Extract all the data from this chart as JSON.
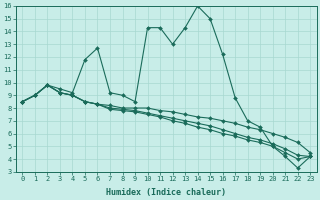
{
  "xlabel": "Humidex (Indice chaleur)",
  "xlim": [
    -0.5,
    23.5
  ],
  "ylim": [
    3,
    16
  ],
  "xticks": [
    0,
    1,
    2,
    3,
    4,
    5,
    6,
    7,
    8,
    9,
    10,
    11,
    12,
    13,
    14,
    15,
    16,
    17,
    18,
    19,
    20,
    21,
    22,
    23
  ],
  "yticks": [
    3,
    4,
    5,
    6,
    7,
    8,
    9,
    10,
    11,
    12,
    13,
    14,
    15,
    16
  ],
  "bg_color": "#c8ede8",
  "line_color": "#1a6b5a",
  "grid_color": "#a8d8d0",
  "lines": [
    {
      "x": [
        0,
        1,
        2,
        3,
        4,
        5,
        6,
        7,
        8,
        9,
        10,
        11,
        12,
        13,
        14,
        15,
        16,
        17,
        18,
        19,
        20,
        21,
        22,
        23
      ],
      "y": [
        8.5,
        9.0,
        9.8,
        9.5,
        9.2,
        11.8,
        12.7,
        9.2,
        9.0,
        8.5,
        14.3,
        14.3,
        13.0,
        14.3,
        16.0,
        15.0,
        12.2,
        8.8,
        7.0,
        6.5,
        5.0,
        4.2,
        3.3,
        4.2
      ]
    },
    {
      "x": [
        0,
        1,
        2,
        3,
        4,
        5,
        6,
        7,
        8,
        9,
        10,
        11,
        12,
        13,
        14,
        15,
        16,
        17,
        18,
        19,
        20,
        21,
        22,
        23
      ],
      "y": [
        8.5,
        9.0,
        9.8,
        9.2,
        9.0,
        8.5,
        8.3,
        8.2,
        8.0,
        8.0,
        8.0,
        7.8,
        7.7,
        7.5,
        7.3,
        7.2,
        7.0,
        6.8,
        6.5,
        6.3,
        6.0,
        5.7,
        5.3,
        4.5
      ]
    },
    {
      "x": [
        0,
        1,
        2,
        3,
        4,
        5,
        6,
        7,
        8,
        9,
        10,
        11,
        12,
        13,
        14,
        15,
        16,
        17,
        18,
        19,
        20,
        21,
        22,
        23
      ],
      "y": [
        8.5,
        9.0,
        9.8,
        9.2,
        9.0,
        8.5,
        8.3,
        8.0,
        7.9,
        7.8,
        7.6,
        7.4,
        7.2,
        7.0,
        6.8,
        6.6,
        6.3,
        6.0,
        5.7,
        5.5,
        5.2,
        4.8,
        4.3,
        4.2
      ]
    },
    {
      "x": [
        0,
        1,
        2,
        3,
        4,
        5,
        6,
        7,
        8,
        9,
        10,
        11,
        12,
        13,
        14,
        15,
        16,
        17,
        18,
        19,
        20,
        21,
        22,
        23
      ],
      "y": [
        8.5,
        9.0,
        9.8,
        9.2,
        9.0,
        8.5,
        8.3,
        7.9,
        7.8,
        7.7,
        7.5,
        7.3,
        7.0,
        6.8,
        6.5,
        6.3,
        6.0,
        5.8,
        5.5,
        5.3,
        5.0,
        4.5,
        4.0,
        4.2
      ]
    }
  ]
}
